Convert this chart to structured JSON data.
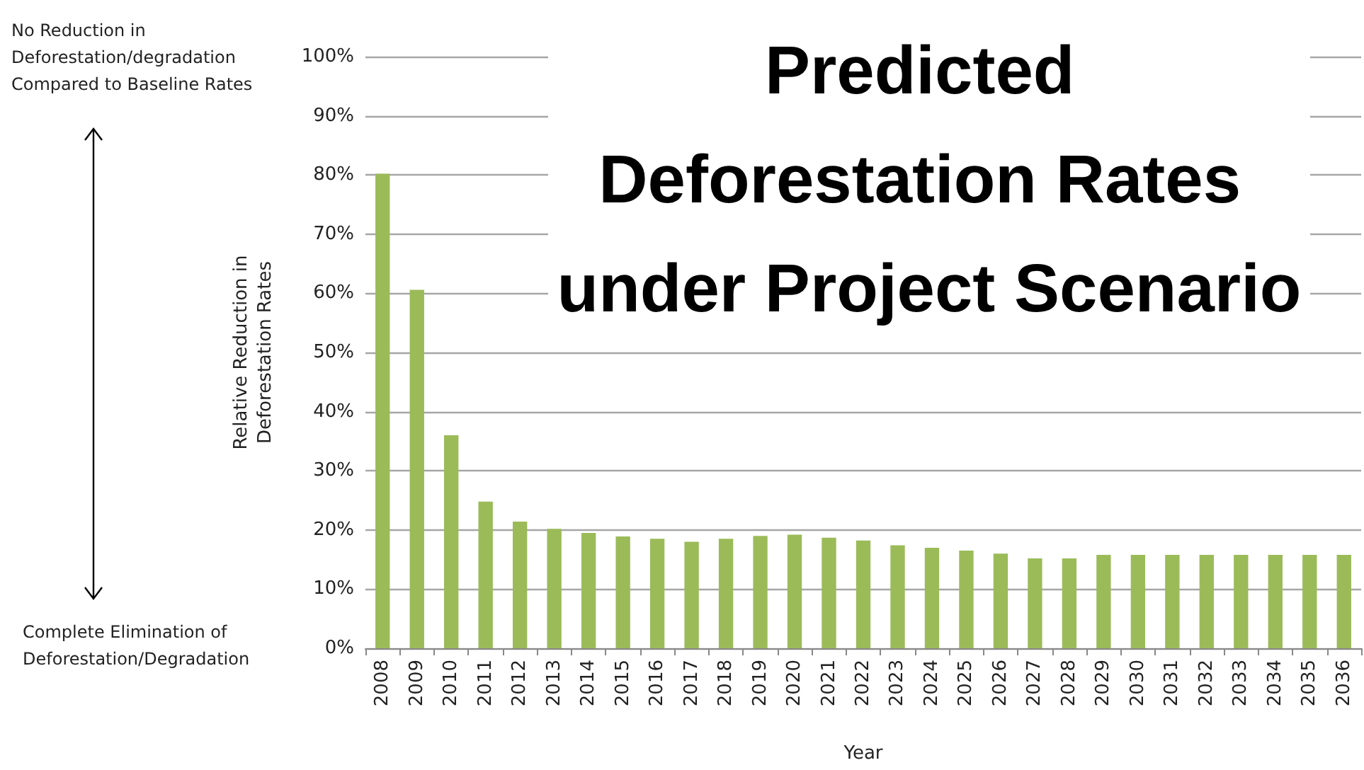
{
  "chart_data": {
    "type": "bar",
    "title": "Predicted Deforestation Rates under Project Scenario",
    "xlabel": "Year",
    "ylabel": "Relative Reduction in Deforestation Rates",
    "annotations": [
      "No Reduction in Deforestation/degradation Compared to Baseline Rates",
      "Complete Elimination of Deforestation/Degradation"
    ],
    "categories": [
      "2008",
      "2009",
      "2010",
      "2011",
      "2012",
      "2013",
      "2014",
      "2015",
      "2016",
      "2017",
      "2018",
      "2019",
      "2020",
      "2021",
      "2022",
      "2023",
      "2024",
      "2025",
      "2026",
      "2027",
      "2028",
      "2029",
      "2030",
      "2031",
      "2032",
      "2033",
      "2034",
      "2035",
      "2036"
    ],
    "values": [
      80.2,
      60.6,
      36.0,
      24.8,
      21.4,
      20.2,
      19.5,
      18.9,
      18.5,
      18.0,
      18.5,
      19.0,
      19.2,
      18.7,
      18.2,
      17.4,
      17.0,
      16.5,
      16.0,
      15.2,
      15.2,
      15.8,
      15.8,
      15.8,
      15.8,
      15.8,
      15.8,
      15.8,
      15.8
    ],
    "color": "#9bbb59",
    "ylim": [
      0,
      100
    ],
    "yticks": [
      {
        "value": 0,
        "label": "0%"
      },
      {
        "value": 10,
        "label": "10%"
      },
      {
        "value": 20,
        "label": "20%"
      },
      {
        "value": 30,
        "label": "30%"
      },
      {
        "value": 40,
        "label": "40%"
      },
      {
        "value": 50,
        "label": "50%"
      },
      {
        "value": 60,
        "label": "60%"
      },
      {
        "value": 70,
        "label": "70%"
      },
      {
        "value": 80,
        "label": "80%"
      },
      {
        "value": 90,
        "label": "90%"
      },
      {
        "value": 100,
        "label": "100%"
      }
    ],
    "grid": true
  }
}
